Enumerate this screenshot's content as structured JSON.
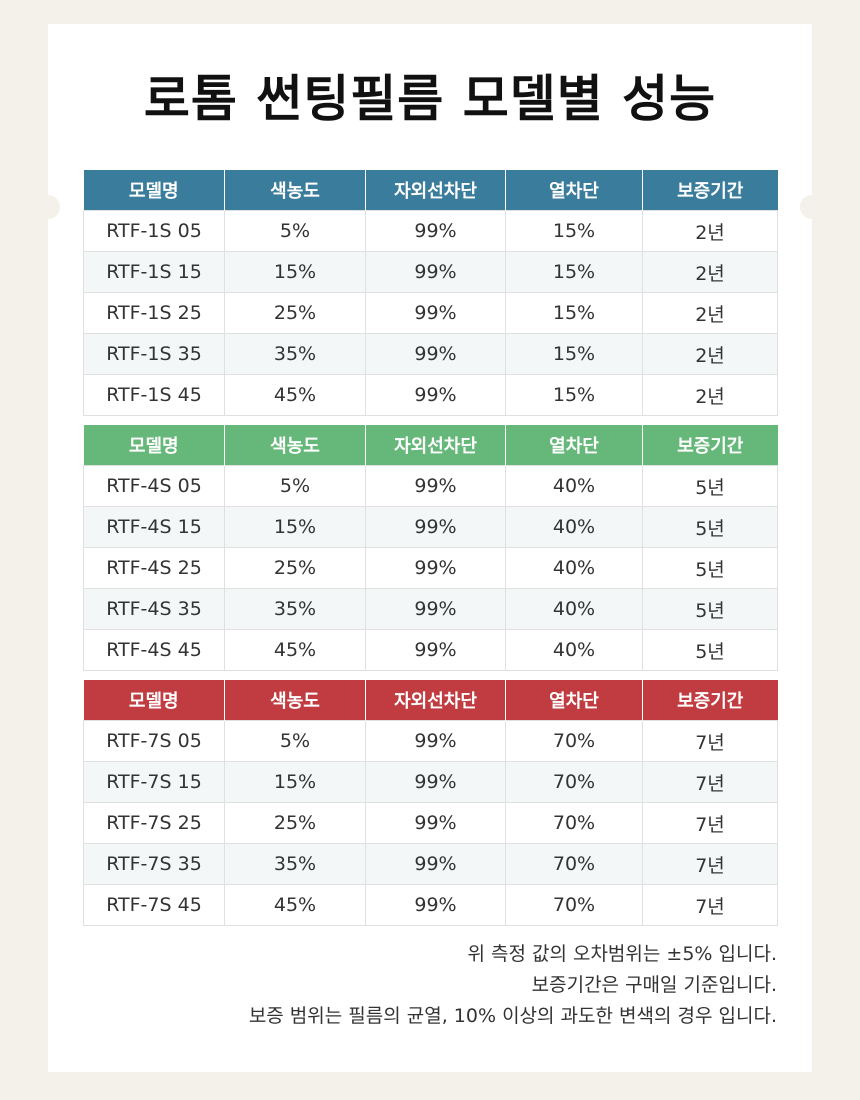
{
  "title": "로톰 썬팅필름 모델별 성능",
  "headers": [
    "모델명",
    "색농도",
    "자외선차단",
    "열차단",
    "보증기간"
  ],
  "colors": {
    "table1_header": "#3a7c9c",
    "table2_header": "#66b87a",
    "table3_header": "#c03c40",
    "page_background": "#f4f1ea"
  },
  "tables": [
    {
      "rows": [
        [
          "RTF-1S 05",
          "5%",
          "99%",
          "15%",
          "2년"
        ],
        [
          "RTF-1S 15",
          "15%",
          "99%",
          "15%",
          "2년"
        ],
        [
          "RTF-1S 25",
          "25%",
          "99%",
          "15%",
          "2년"
        ],
        [
          "RTF-1S 35",
          "35%",
          "99%",
          "15%",
          "2년"
        ],
        [
          "RTF-1S 45",
          "45%",
          "99%",
          "15%",
          "2년"
        ]
      ]
    },
    {
      "rows": [
        [
          "RTF-4S 05",
          "5%",
          "99%",
          "40%",
          "5년"
        ],
        [
          "RTF-4S 15",
          "15%",
          "99%",
          "40%",
          "5년"
        ],
        [
          "RTF-4S 25",
          "25%",
          "99%",
          "40%",
          "5년"
        ],
        [
          "RTF-4S 35",
          "35%",
          "99%",
          "40%",
          "5년"
        ],
        [
          "RTF-4S 45",
          "45%",
          "99%",
          "40%",
          "5년"
        ]
      ]
    },
    {
      "rows": [
        [
          "RTF-7S 05",
          "5%",
          "99%",
          "70%",
          "7년"
        ],
        [
          "RTF-7S 15",
          "15%",
          "99%",
          "70%",
          "7년"
        ],
        [
          "RTF-7S 25",
          "25%",
          "99%",
          "70%",
          "7년"
        ],
        [
          "RTF-7S 35",
          "35%",
          "99%",
          "70%",
          "7년"
        ],
        [
          "RTF-7S 45",
          "45%",
          "99%",
          "70%",
          "7년"
        ]
      ]
    }
  ],
  "notes": [
    "위 측정 값의 오차범위는 ±5% 입니다.",
    "보증기간은 구매일 기준입니다.",
    "보증 범위는 필름의 균열, 10% 이상의 과도한 변색의 경우 입니다."
  ]
}
